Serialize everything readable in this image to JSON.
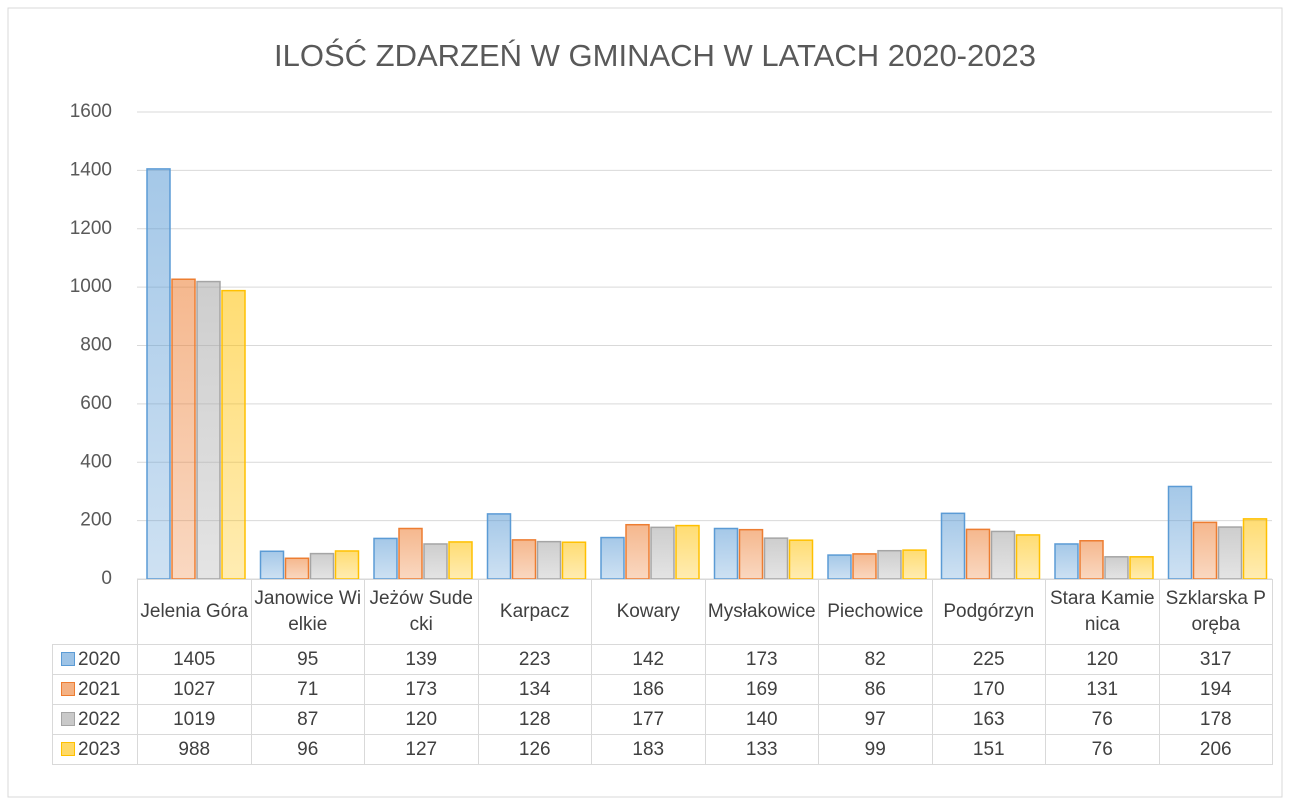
{
  "chart_data": {
    "type": "bar",
    "title": "ILOŚĆ ZDARZEŃ W GMINACH W LATACH 2020-2023",
    "categories": [
      "Jelenia Góra",
      "Janowice Wielkie",
      "Jeżów Sudecki",
      "Karpacz",
      "Kowary",
      "Mysłakowice",
      "Piechowice",
      "Podgórzyn",
      "Stara Kamienica",
      "Szklarska Poręba"
    ],
    "series": [
      {
        "name": "2020",
        "color": "#5b9bd5",
        "values": [
          1405,
          95,
          139,
          223,
          142,
          173,
          82,
          225,
          120,
          317
        ]
      },
      {
        "name": "2021",
        "color": "#ed7d31",
        "values": [
          1027,
          71,
          173,
          134,
          186,
          169,
          86,
          170,
          131,
          194
        ]
      },
      {
        "name": "2022",
        "color": "#a5a5a5",
        "values": [
          1019,
          87,
          120,
          128,
          177,
          140,
          97,
          163,
          76,
          178
        ]
      },
      {
        "name": "2023",
        "color": "#ffc000",
        "values": [
          988,
          96,
          127,
          126,
          183,
          133,
          99,
          151,
          76,
          206
        ]
      }
    ],
    "ylim": [
      0,
      1600
    ],
    "yticks": [
      0,
      200,
      400,
      600,
      800,
      1000,
      1200,
      1400,
      1600
    ],
    "grid": true
  }
}
